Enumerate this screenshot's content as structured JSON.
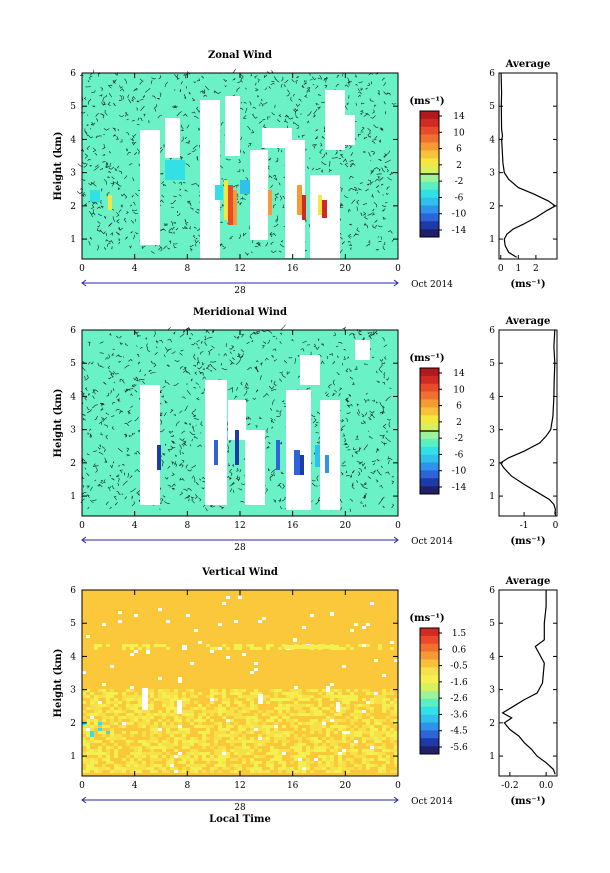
{
  "chart_data": [
    {
      "type": "heatmap",
      "title": "Zonal Wind",
      "ylabel": "Height (km)",
      "y_ticks": [
        "1",
        "2",
        "3",
        "4",
        "5",
        "6"
      ],
      "x_ticks": [
        "0",
        "4",
        "8",
        "12",
        "16",
        "20",
        "0"
      ],
      "xlim": [
        0,
        24
      ],
      "ylim": [
        0.4,
        6
      ],
      "date_day": "28",
      "date_month": "Oct 2014",
      "colorbar": {
        "unit": "(ms⁻¹)",
        "labels": [
          "14",
          "10",
          "6",
          "2",
          "-2",
          "-6",
          "-10",
          "-14"
        ],
        "range": [
          -16,
          16
        ]
      },
      "profile": {
        "title": "Average",
        "xlabel": "(ms⁻¹)",
        "x_ticks": [
          "0",
          "1",
          "2"
        ],
        "xlim": [
          -0.1,
          3.2
        ],
        "ylim": [
          0.4,
          6
        ],
        "y_ticks": [
          "1",
          "2",
          "3",
          "4",
          "5",
          "6"
        ],
        "points": [
          [
            0.9,
            0.45
          ],
          [
            0.45,
            0.6
          ],
          [
            0.25,
            0.8
          ],
          [
            0.2,
            1.0
          ],
          [
            0.35,
            1.15
          ],
          [
            0.7,
            1.3
          ],
          [
            1.3,
            1.45
          ],
          [
            2.0,
            1.65
          ],
          [
            2.6,
            1.85
          ],
          [
            3.1,
            2.0
          ],
          [
            2.7,
            2.15
          ],
          [
            1.9,
            2.35
          ],
          [
            1.0,
            2.55
          ],
          [
            0.45,
            2.8
          ],
          [
            0.2,
            3.0
          ],
          [
            0.12,
            3.3
          ],
          [
            0.08,
            3.7
          ],
          [
            0.05,
            4.0
          ],
          [
            0.1,
            4.1
          ],
          [
            0.05,
            4.3
          ],
          [
            0.03,
            5.0
          ],
          [
            0.05,
            5.4
          ],
          [
            0.02,
            6.0
          ]
        ]
      }
    },
    {
      "type": "heatmap",
      "title": "Meridional Wind",
      "ylabel": "Height (km)",
      "y_ticks": [
        "1",
        "2",
        "3",
        "4",
        "5",
        "6"
      ],
      "x_ticks": [
        "0",
        "4",
        "8",
        "12",
        "16",
        "20",
        "0"
      ],
      "xlim": [
        0,
        24
      ],
      "ylim": [
        0.4,
        6
      ],
      "date_day": "28",
      "date_month": "Oct 2014",
      "colorbar": {
        "unit": "(ms⁻¹)",
        "labels": [
          "14",
          "10",
          "6",
          "2",
          "-2",
          "-6",
          "-10",
          "-14"
        ],
        "range": [
          -16,
          16
        ]
      },
      "profile": {
        "title": "Average",
        "xlabel": "(ms⁻¹)",
        "x_ticks": [
          "-1",
          "0"
        ],
        "xlim": [
          -1.8,
          0.05
        ],
        "ylim": [
          0.4,
          6
        ],
        "y_ticks": [
          "1",
          "2",
          "3",
          "4",
          "5",
          "6"
        ],
        "points": [
          [
            -0.02,
            0.45
          ],
          [
            0,
            0.6
          ],
          [
            -0.05,
            0.75
          ],
          [
            -0.2,
            0.9
          ],
          [
            -0.55,
            1.1
          ],
          [
            -1.0,
            1.35
          ],
          [
            -1.4,
            1.6
          ],
          [
            -1.65,
            1.85
          ],
          [
            -1.75,
            2.0
          ],
          [
            -1.5,
            2.15
          ],
          [
            -1.0,
            2.35
          ],
          [
            -0.5,
            2.6
          ],
          [
            -0.3,
            2.8
          ],
          [
            -0.15,
            3.0
          ],
          [
            -0.08,
            3.4
          ],
          [
            -0.05,
            4.0
          ],
          [
            -0.04,
            4.5
          ],
          [
            -0.02,
            5.0
          ],
          [
            -0.05,
            5.5
          ],
          [
            -0.02,
            6.0
          ]
        ]
      }
    },
    {
      "type": "heatmap",
      "title": "Vertical Wind",
      "ylabel": "Height (km)",
      "xlabel": "Local Time",
      "y_ticks": [
        "1",
        "2",
        "3",
        "4",
        "5",
        "6"
      ],
      "x_ticks": [
        "0",
        "4",
        "8",
        "12",
        "16",
        "20",
        "0"
      ],
      "xlim": [
        0,
        24
      ],
      "ylim": [
        0.4,
        6
      ],
      "date_day": "28",
      "date_month": "Oct 2014",
      "colorbar": {
        "unit": "(ms⁻¹)",
        "labels": [
          "1.5",
          "0.6",
          "-0.5",
          "-1.6",
          "-2.6",
          "-3.6",
          "-4.5",
          "-5.6"
        ],
        "range": [
          -6,
          2
        ]
      },
      "profile": {
        "title": "Average",
        "xlabel": "(ms⁻¹)",
        "x_ticks": [
          "-0.2",
          "0.0"
        ],
        "xlim": [
          -0.26,
          0.06
        ],
        "ylim": [
          0.4,
          6
        ],
        "y_ticks": [
          "1",
          "2",
          "3",
          "4",
          "5",
          "6"
        ],
        "points": [
          [
            0.05,
            0.45
          ],
          [
            0.04,
            0.6
          ],
          [
            0.0,
            0.8
          ],
          [
            -0.05,
            1.0
          ],
          [
            -0.08,
            1.2
          ],
          [
            -0.12,
            1.4
          ],
          [
            -0.15,
            1.6
          ],
          [
            -0.2,
            1.8
          ],
          [
            -0.23,
            2.0
          ],
          [
            -0.19,
            2.15
          ],
          [
            -0.24,
            2.3
          ],
          [
            -0.18,
            2.5
          ],
          [
            -0.12,
            2.7
          ],
          [
            -0.05,
            2.9
          ],
          [
            -0.02,
            3.2
          ],
          [
            -0.01,
            3.8
          ],
          [
            -0.04,
            4.1
          ],
          [
            -0.06,
            4.3
          ],
          [
            -0.01,
            4.5
          ],
          [
            -0.01,
            5.0
          ],
          [
            0.0,
            5.5
          ],
          [
            0.0,
            6.0
          ]
        ]
      }
    }
  ]
}
